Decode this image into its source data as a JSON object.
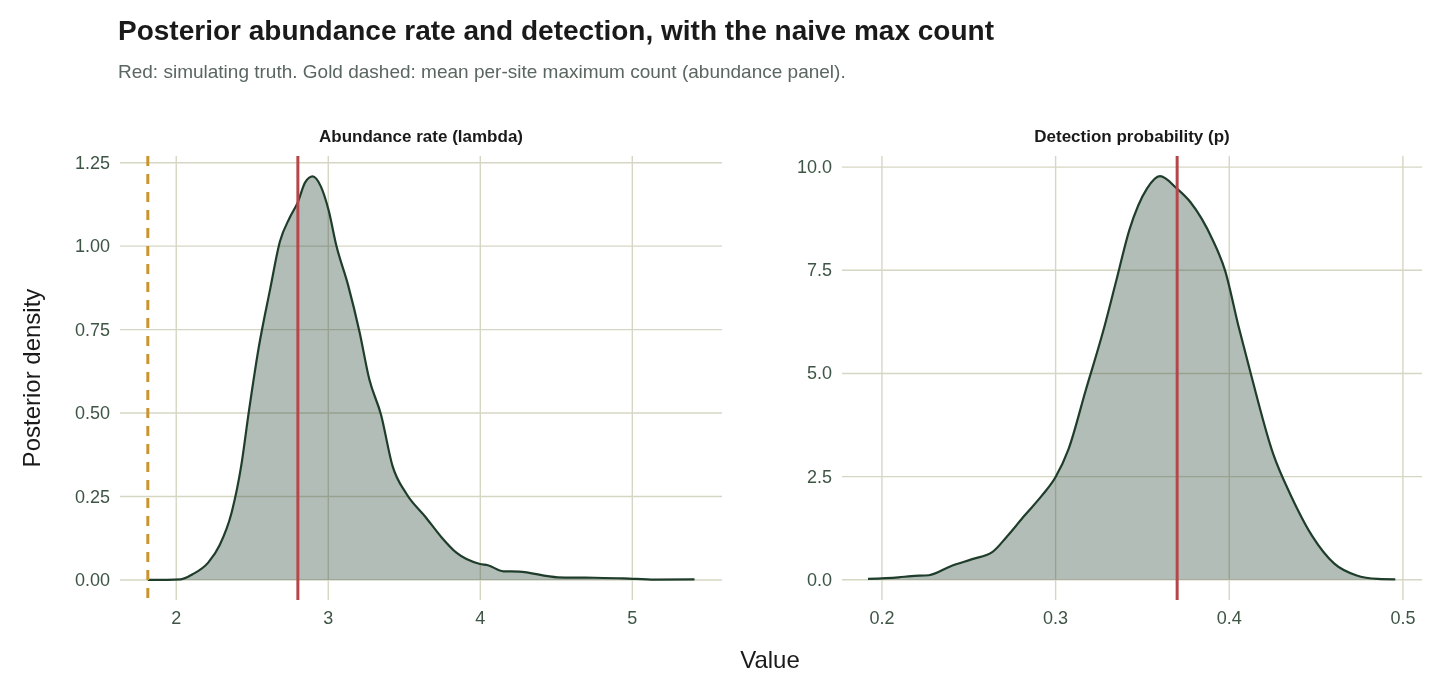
{
  "chart_data": [
    {
      "type": "area",
      "title": "Abundance rate (lambda)",
      "annotations": [
        "Posterior abundance rate and detection, with the naive max count",
        "Red: simulating truth. Gold dashed: mean per-site maximum count (abundance panel)."
      ],
      "xlabel": "Value",
      "ylabel": "Posterior density",
      "series": [
        {
          "color": "#1f3d2b",
          "x": [
            1.813,
            2.03,
            2.107,
            2.21,
            2.286,
            2.363,
            2.427,
            2.478,
            2.542,
            2.618,
            2.682,
            2.746,
            2.8,
            2.848,
            2.897,
            2.951,
            3.002,
            3.053,
            3.13,
            3.206,
            3.27,
            3.347,
            3.423,
            3.513,
            3.641,
            3.743,
            3.845,
            3.998,
            4.05,
            4.152,
            4.254,
            4.51,
            4.69,
            4.944,
            5.149,
            5.409
          ],
          "values": [
            0,
            0.002,
            0.017,
            0.052,
            0.105,
            0.2,
            0.341,
            0.506,
            0.695,
            0.872,
            1.014,
            1.085,
            1.132,
            1.191,
            1.209,
            1.179,
            1.108,
            1.002,
            0.884,
            0.742,
            0.601,
            0.495,
            0.341,
            0.259,
            0.188,
            0.129,
            0.081,
            0.048,
            0.044,
            0.026,
            0.025,
            0.008,
            0.007,
            0.005,
            0.001,
            0.002
          ]
        }
      ],
      "xlim": [
        1.63,
        5.59
      ],
      "xticks": [
        2,
        3,
        4,
        5
      ],
      "ylim": [
        -0.06,
        1.27
      ],
      "yticks": [
        {
          "value": 0,
          "label": "0.00"
        },
        {
          "value": 0.25,
          "label": "0.25"
        },
        {
          "value": 0.5,
          "label": "0.50"
        },
        {
          "value": 0.75,
          "label": "0.75"
        },
        {
          "value": 1,
          "label": "1.00"
        },
        {
          "value": 1.25,
          "label": "1.25"
        }
      ],
      "ref_lines": [
        {
          "axis": "x",
          "value": 2.8,
          "color": "#b5474b",
          "line_style": "solid"
        },
        {
          "axis": "x",
          "value": 1.813,
          "color": "#c9952f",
          "line_style": "dashed"
        }
      ],
      "grid": true
    },
    {
      "type": "area",
      "title": "Detection probability (p)",
      "series": [
        {
          "color": "#1f3d2b",
          "x": [
            0.192,
            0.2095,
            0.217,
            0.227,
            0.2396,
            0.252,
            0.2635,
            0.272,
            0.282,
            0.2923,
            0.3,
            0.3074,
            0.3174,
            0.3275,
            0.335,
            0.3425,
            0.3526,
            0.3601,
            0.3699,
            0.3777,
            0.3902,
            0.3977,
            0.4053,
            0.4128,
            0.4253,
            0.4354,
            0.4479,
            0.4605,
            0.473,
            0.4856,
            0.4956
          ],
          "values": [
            0.02,
            0.06,
            0.09,
            0.11,
            0.33,
            0.5,
            0.67,
            1.05,
            1.55,
            2.05,
            2.49,
            3.16,
            4.6,
            6.04,
            7.26,
            8.48,
            9.48,
            9.78,
            9.48,
            9.15,
            8.26,
            7.48,
            6.15,
            4.93,
            3.05,
            2.05,
            1.05,
            0.39,
            0.11,
            0.02,
            0.01
          ]
        }
      ],
      "xlim": [
        0.177,
        0.511
      ],
      "xticks": [
        0.2,
        0.3,
        0.4,
        0.5
      ],
      "ylim": [
        -0.49,
        10.27
      ],
      "yticks": [
        {
          "value": 0,
          "label": "0.0"
        },
        {
          "value": 2.5,
          "label": "2.5"
        },
        {
          "value": 5,
          "label": "5.0"
        },
        {
          "value": 7.5,
          "label": "7.5"
        },
        {
          "value": 10,
          "label": "10.0"
        }
      ],
      "ref_lines": [
        {
          "axis": "x",
          "value": 0.37,
          "color": "#b5474b",
          "line_style": "solid"
        }
      ],
      "grid": true
    }
  ]
}
